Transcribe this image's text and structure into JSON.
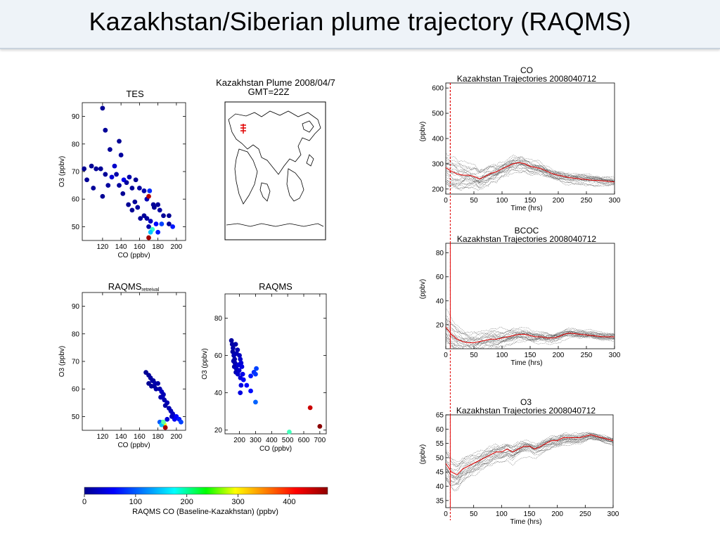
{
  "slide": {
    "title": "Kazakhstan/Siberian plume trajectory (RAQMS)"
  },
  "map": {
    "title_line1": "Kazakhstan Plume 2008/04/7",
    "title_line2": "GMT=22Z"
  },
  "colorbar": {
    "label": "RAQMS CO (Baseline-Kazakhstan) (ppbv)",
    "ticks": [
      "0",
      "100",
      "200",
      "300",
      "400"
    ],
    "range": [
      0,
      475
    ]
  },
  "chart_data": [
    {
      "type": "scatter",
      "title": "TES",
      "xlabel": "CO (ppbv)",
      "ylabel": "O3 (ppbv)",
      "xlim": [
        98,
        210
      ],
      "ylim": [
        45,
        95
      ],
      "xticks": [
        "120",
        "140",
        "160",
        "180",
        "200"
      ],
      "yticks": [
        "50",
        "60",
        "70",
        "80",
        "90"
      ],
      "points": [
        [
          120,
          93,
          10
        ],
        [
          123,
          85,
          12
        ],
        [
          138,
          81,
          10
        ],
        [
          128,
          78,
          12
        ],
        [
          140,
          76,
          14
        ],
        [
          100,
          71,
          8
        ],
        [
          108,
          72,
          10
        ],
        [
          113,
          71,
          12
        ],
        [
          118,
          71,
          10
        ],
        [
          123,
          69,
          12
        ],
        [
          130,
          68,
          40
        ],
        [
          133,
          72,
          35
        ],
        [
          135,
          69,
          20
        ],
        [
          138,
          65,
          14
        ],
        [
          143,
          67,
          50
        ],
        [
          146,
          66,
          15
        ],
        [
          149,
          68,
          20
        ],
        [
          103,
          67,
          10
        ],
        [
          110,
          64,
          12
        ],
        [
          120,
          61,
          10
        ],
        [
          126,
          65,
          14
        ],
        [
          142,
          62,
          10
        ],
        [
          152,
          64,
          12
        ],
        [
          156,
          67,
          10
        ],
        [
          160,
          64,
          15
        ],
        [
          165,
          63,
          20
        ],
        [
          168,
          60,
          25
        ],
        [
          171,
          63,
          80
        ],
        [
          170,
          61,
          450
        ],
        [
          175,
          58,
          12
        ],
        [
          148,
          58,
          10
        ],
        [
          152,
          56,
          10
        ],
        [
          155,
          59,
          12
        ],
        [
          158,
          57,
          15
        ],
        [
          161,
          53,
          12
        ],
        [
          165,
          54,
          12
        ],
        [
          168,
          53,
          14
        ],
        [
          170,
          50,
          20
        ],
        [
          172,
          52,
          30
        ],
        [
          178,
          51,
          60
        ],
        [
          182,
          56,
          15
        ],
        [
          186,
          54,
          12
        ],
        [
          192,
          51,
          12
        ],
        [
          176,
          57,
          10
        ],
        [
          180,
          58,
          12
        ],
        [
          174,
          49,
          200
        ],
        [
          172,
          48,
          150
        ],
        [
          180,
          48,
          70
        ],
        [
          196,
          50,
          70
        ],
        [
          192,
          54,
          10
        ],
        [
          184,
          51,
          90
        ],
        [
          170,
          46,
          460
        ]
      ]
    },
    {
      "type": "scatter",
      "title": "RAQMS",
      "title_subscript": "retreival",
      "xlabel": "CO (ppbv)",
      "ylabel": "O3 (ppbv)",
      "xlim": [
        98,
        210
      ],
      "ylim": [
        45,
        95
      ],
      "xticks": [
        "120",
        "140",
        "160",
        "180",
        "200"
      ],
      "yticks": [
        "50",
        "60",
        "70",
        "80",
        "90"
      ],
      "points": [
        [
          167,
          66,
          10
        ],
        [
          170,
          65,
          12
        ],
        [
          172,
          64,
          14
        ],
        [
          175,
          63,
          12
        ],
        [
          170,
          62,
          10
        ],
        [
          173,
          61,
          12
        ],
        [
          176,
          61,
          14
        ],
        [
          180,
          62,
          16
        ],
        [
          178,
          60,
          18
        ],
        [
          182,
          60,
          20
        ],
        [
          184,
          59,
          30
        ],
        [
          186,
          58,
          25
        ],
        [
          183,
          57,
          20
        ],
        [
          187,
          56,
          22
        ],
        [
          190,
          55,
          24
        ],
        [
          188,
          54,
          18
        ],
        [
          192,
          53,
          22
        ],
        [
          194,
          52,
          25
        ],
        [
          196,
          51,
          30
        ],
        [
          198,
          50,
          40
        ],
        [
          200,
          50,
          60
        ],
        [
          203,
          49,
          70
        ],
        [
          205,
          48,
          90
        ],
        [
          198,
          49,
          55
        ],
        [
          185,
          48,
          200
        ],
        [
          187,
          47,
          300
        ],
        [
          182,
          48,
          100
        ],
        [
          184,
          47,
          150
        ],
        [
          186,
          48,
          220
        ],
        [
          188,
          46,
          460
        ],
        [
          190,
          49,
          40
        ],
        [
          195,
          50,
          30
        ],
        [
          174,
          63,
          15
        ],
        [
          177,
          62,
          20
        ],
        [
          185,
          57,
          25
        ]
      ]
    },
    {
      "type": "scatter",
      "title": "RAQMS",
      "xlabel": "CO (ppbv)",
      "ylabel": "O3 (ppbv)",
      "xlim": [
        110,
        740
      ],
      "ylim": [
        18,
        93
      ],
      "xticks": [
        "200",
        "300",
        "400",
        "500",
        "600",
        "700"
      ],
      "yticks": [
        "20",
        "40",
        "60",
        "80"
      ],
      "points": [
        [
          150,
          68,
          15
        ],
        [
          155,
          66,
          18
        ],
        [
          160,
          64,
          20
        ],
        [
          158,
          62,
          15
        ],
        [
          165,
          60,
          25
        ],
        [
          170,
          58,
          20
        ],
        [
          163,
          57,
          18
        ],
        [
          172,
          56,
          22
        ],
        [
          175,
          55,
          25
        ],
        [
          168,
          54,
          20
        ],
        [
          180,
          53,
          30
        ],
        [
          185,
          52,
          28
        ],
        [
          178,
          51,
          25
        ],
        [
          190,
          50,
          35
        ],
        [
          195,
          55,
          40
        ],
        [
          200,
          60,
          30
        ],
        [
          205,
          58,
          35
        ],
        [
          210,
          56,
          40
        ],
        [
          215,
          54,
          45
        ],
        [
          220,
          50,
          50
        ],
        [
          188,
          63,
          25
        ],
        [
          176,
          66,
          20
        ],
        [
          182,
          61,
          25
        ],
        [
          198,
          52,
          35
        ],
        [
          206,
          48,
          40
        ],
        [
          210,
          44,
          45
        ],
        [
          225,
          47,
          55
        ],
        [
          245,
          44,
          60
        ],
        [
          205,
          40,
          45
        ],
        [
          270,
          41,
          65
        ],
        [
          290,
          51,
          80
        ],
        [
          305,
          53,
          90
        ],
        [
          300,
          50,
          85
        ],
        [
          300,
          35,
          105
        ],
        [
          270,
          49,
          70
        ],
        [
          510,
          19,
          210
        ],
        [
          640,
          32,
          440
        ],
        [
          700,
          22,
          470
        ]
      ]
    },
    {
      "type": "line",
      "title": "CO",
      "subtitle": "Kazakhstan Trajectories 2008040712",
      "xlabel": "Time (hrs)",
      "ylabel": "(ppbv)",
      "xlim": [
        0,
        300
      ],
      "ylim": [
        180,
        620
      ],
      "xticks": [
        "0",
        "50",
        "100",
        "150",
        "200",
        "250",
        "300"
      ],
      "yticks": [
        "200",
        "300",
        "400",
        "500",
        "600"
      ],
      "marker_time": 8,
      "mean_series": [
        [
          0,
          285
        ],
        [
          10,
          270
        ],
        [
          20,
          260
        ],
        [
          30,
          255
        ],
        [
          40,
          255
        ],
        [
          50,
          250
        ],
        [
          60,
          240
        ],
        [
          70,
          250
        ],
        [
          80,
          262
        ],
        [
          90,
          268
        ],
        [
          100,
          280
        ],
        [
          110,
          290
        ],
        [
          120,
          300
        ],
        [
          130,
          305
        ],
        [
          140,
          300
        ],
        [
          150,
          290
        ],
        [
          160,
          285
        ],
        [
          170,
          280
        ],
        [
          180,
          270
        ],
        [
          190,
          260
        ],
        [
          200,
          255
        ],
        [
          210,
          250
        ],
        [
          220,
          245
        ],
        [
          240,
          240
        ],
        [
          260,
          235
        ],
        [
          280,
          232
        ],
        [
          300,
          228
        ]
      ]
    },
    {
      "type": "line",
      "title": "BCOC",
      "subtitle": "Kazakhstan Trajectories 2008040712",
      "xlabel": "Time (hrs)",
      "ylabel": "(ppbv)",
      "xlim": [
        0,
        300
      ],
      "ylim": [
        0,
        88
      ],
      "xticks": [
        "0",
        "50",
        "100",
        "150",
        "200",
        "250",
        "300"
      ],
      "yticks": [
        "20",
        "40",
        "60",
        "80"
      ],
      "marker_time": 8,
      "mean_series": [
        [
          0,
          18
        ],
        [
          10,
          12
        ],
        [
          20,
          8
        ],
        [
          30,
          6
        ],
        [
          40,
          5
        ],
        [
          50,
          5
        ],
        [
          60,
          6
        ],
        [
          70,
          7
        ],
        [
          80,
          8
        ],
        [
          90,
          8
        ],
        [
          100,
          9
        ],
        [
          110,
          10
        ],
        [
          120,
          11
        ],
        [
          130,
          12
        ],
        [
          140,
          12
        ],
        [
          150,
          11
        ],
        [
          160,
          10
        ],
        [
          170,
          10
        ],
        [
          180,
          9
        ],
        [
          190,
          9
        ],
        [
          200,
          10
        ],
        [
          210,
          12
        ],
        [
          220,
          13
        ],
        [
          240,
          12
        ],
        [
          260,
          11
        ],
        [
          280,
          10
        ],
        [
          300,
          10
        ]
      ]
    },
    {
      "type": "line",
      "title": "O3",
      "subtitle": "Kazakhstan Trajectories 2008040712",
      "xlabel": "Time (hrs)",
      "ylabel": "(ppbv)",
      "xlim": [
        0,
        300
      ],
      "ylim": [
        32.5,
        65
      ],
      "xticks": [
        "0",
        "50",
        "100",
        "150",
        "200",
        "250",
        "300"
      ],
      "yticks": [
        "35",
        "40",
        "45",
        "50",
        "55",
        "60",
        "65"
      ],
      "marker_time": 8,
      "mean_series": [
        [
          0,
          48
        ],
        [
          10,
          45
        ],
        [
          20,
          44
        ],
        [
          30,
          46
        ],
        [
          40,
          47
        ],
        [
          50,
          48
        ],
        [
          60,
          49
        ],
        [
          70,
          50
        ],
        [
          80,
          51
        ],
        [
          90,
          52
        ],
        [
          100,
          52
        ],
        [
          110,
          53
        ],
        [
          120,
          52
        ],
        [
          130,
          53
        ],
        [
          140,
          54
        ],
        [
          150,
          54
        ],
        [
          160,
          53
        ],
        [
          170,
          54
        ],
        [
          180,
          55
        ],
        [
          190,
          56
        ],
        [
          200,
          56
        ],
        [
          210,
          57
        ],
        [
          220,
          57
        ],
        [
          240,
          57
        ],
        [
          260,
          58
        ],
        [
          280,
          57
        ],
        [
          300,
          56
        ]
      ]
    }
  ]
}
